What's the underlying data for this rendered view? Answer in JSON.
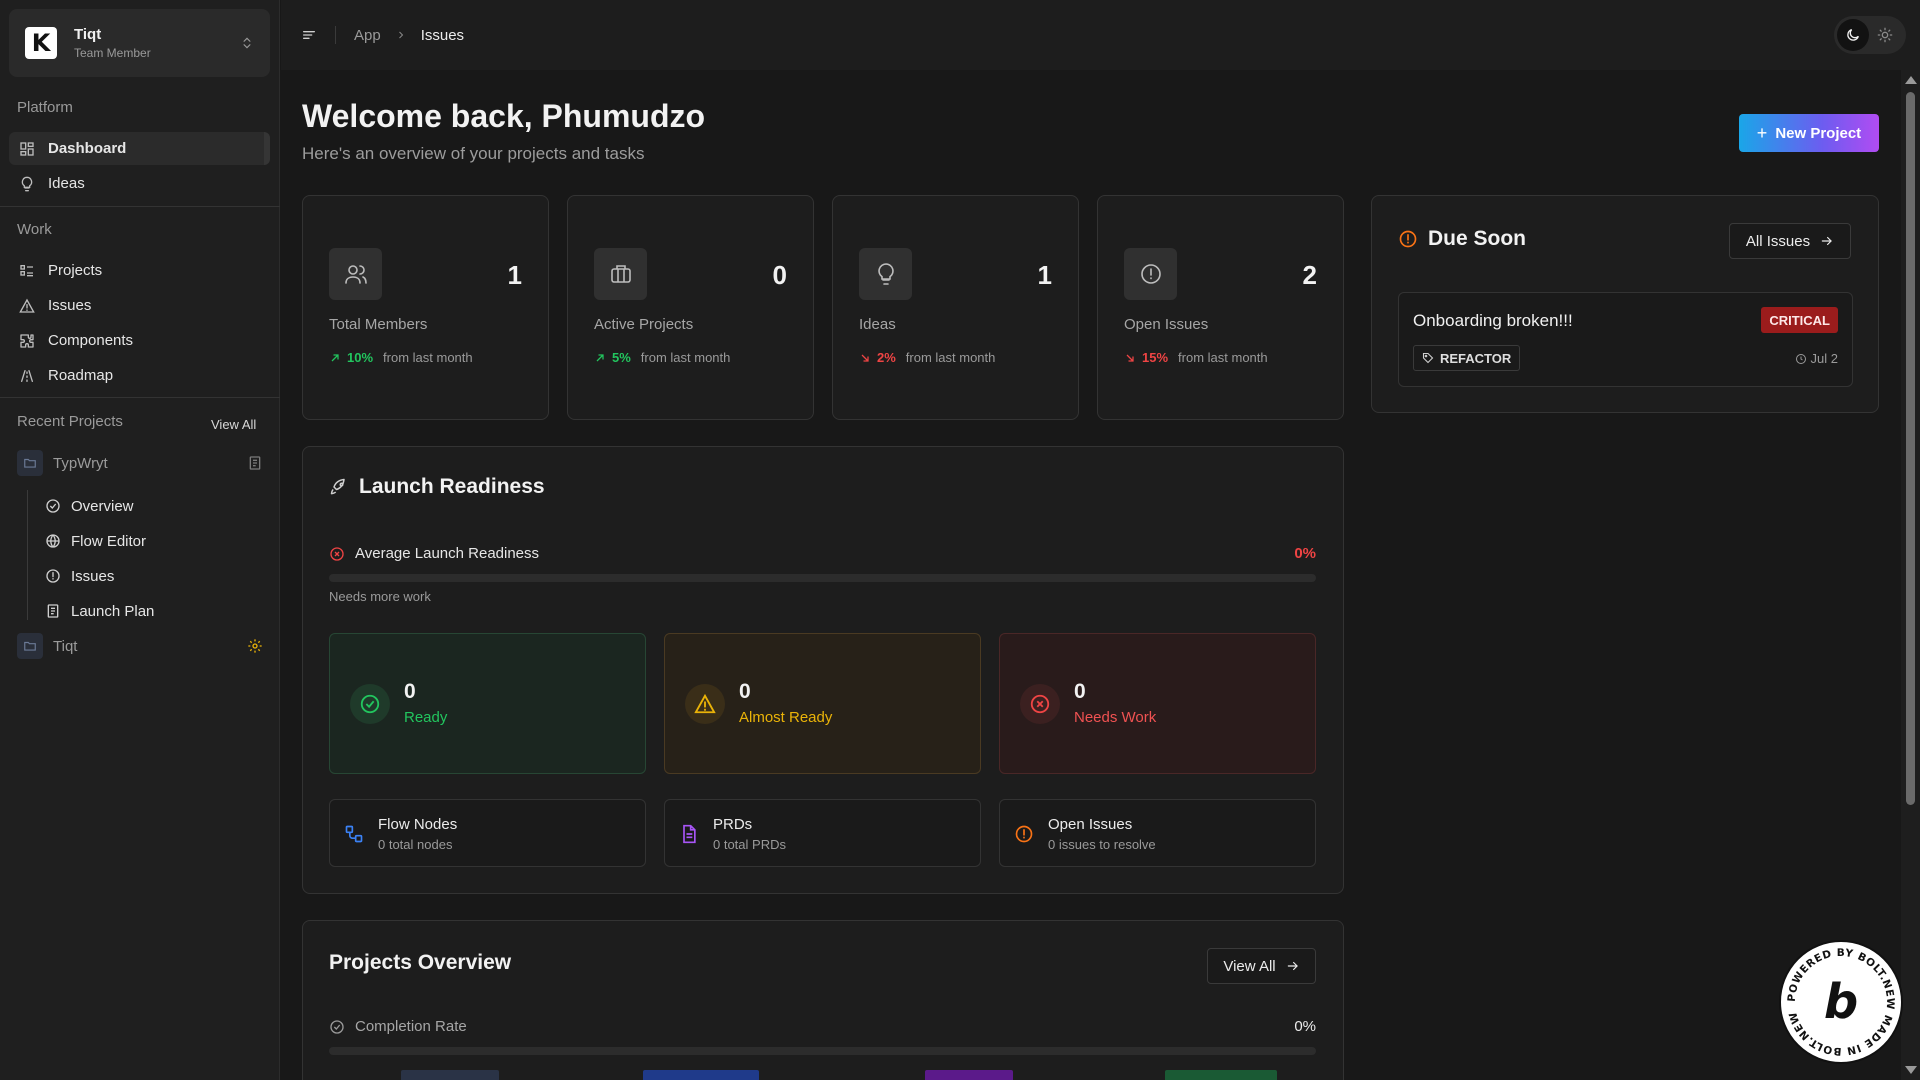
{
  "team": {
    "logo_letter": "K",
    "name": "Tiqt",
    "role": "Team Member"
  },
  "sidebar": {
    "platform_label": "Platform",
    "platform_items": [
      {
        "label": "Dashboard",
        "icon": "dashboard-icon"
      },
      {
        "label": "Ideas",
        "icon": "lightbulb-icon"
      }
    ],
    "work_label": "Work",
    "work_items": [
      {
        "label": "Projects",
        "icon": "list-icon"
      },
      {
        "label": "Issues",
        "icon": "warning-icon"
      },
      {
        "label": "Components",
        "icon": "puzzle-icon"
      },
      {
        "label": "Roadmap",
        "icon": "roadmap-icon"
      }
    ],
    "recent_label": "Recent Projects",
    "view_all": "View All",
    "projects": [
      {
        "name": "TypWryt"
      },
      {
        "name": "Tiqt"
      }
    ],
    "sub_items": [
      {
        "label": "Overview",
        "icon": "check-circle-icon"
      },
      {
        "label": "Flow Editor",
        "icon": "globe-icon"
      },
      {
        "label": "Issues",
        "icon": "alert-circle-icon"
      },
      {
        "label": "Launch Plan",
        "icon": "clipboard-icon"
      }
    ]
  },
  "topbar": {
    "breadcrumb": [
      "App",
      "Issues"
    ]
  },
  "header": {
    "welcome": "Welcome back, Phumudzo",
    "subtitle": "Here's an overview of your projects and tasks",
    "new_project": "New Project"
  },
  "stats": [
    {
      "label": "Total Members",
      "value": "1",
      "pct": "10%",
      "dir": "up",
      "suffix": "from last month",
      "icon": "users-icon"
    },
    {
      "label": "Active Projects",
      "value": "0",
      "pct": "5%",
      "dir": "up",
      "suffix": "from last month",
      "icon": "briefcase-icon"
    },
    {
      "label": "Ideas",
      "value": "1",
      "pct": "2%",
      "dir": "down",
      "suffix": "from last month",
      "icon": "lightbulb-icon"
    },
    {
      "label": "Open Issues",
      "value": "2",
      "pct": "15%",
      "dir": "down",
      "suffix": "from last month",
      "icon": "alert-circle-icon"
    }
  ],
  "due_soon": {
    "title": "Due Soon",
    "all_issues": "All Issues",
    "issue": {
      "title": "Onboarding broken!!!",
      "priority": "CRITICAL",
      "tag": "REFACTOR",
      "date": "Jul 2"
    }
  },
  "launch": {
    "title": "Launch Readiness",
    "avg_label": "Average Launch Readiness",
    "avg_value": "0%",
    "avg_fraction": 0,
    "note": "Needs more work",
    "statuses": [
      {
        "count": "0",
        "label": "Ready"
      },
      {
        "count": "0",
        "label": "Almost Ready"
      },
      {
        "count": "0",
        "label": "Needs Work"
      }
    ],
    "metrics": [
      {
        "title": "Flow Nodes",
        "sub": "0 total nodes"
      },
      {
        "title": "PRDs",
        "sub": "0 total PRDs"
      },
      {
        "title": "Open Issues",
        "sub": "0 issues to resolve"
      }
    ]
  },
  "overview": {
    "title": "Projects Overview",
    "view_all": "View All",
    "completion_label": "Completion Rate",
    "completion_value": "0%",
    "bar_colors": [
      "#2a3346",
      "#1f3a8a",
      "#5b1a8a",
      "#1a5a34"
    ]
  },
  "colors": {
    "accent_up": "#22c55e",
    "accent_down": "#ef4444",
    "warning": "#f97316"
  }
}
